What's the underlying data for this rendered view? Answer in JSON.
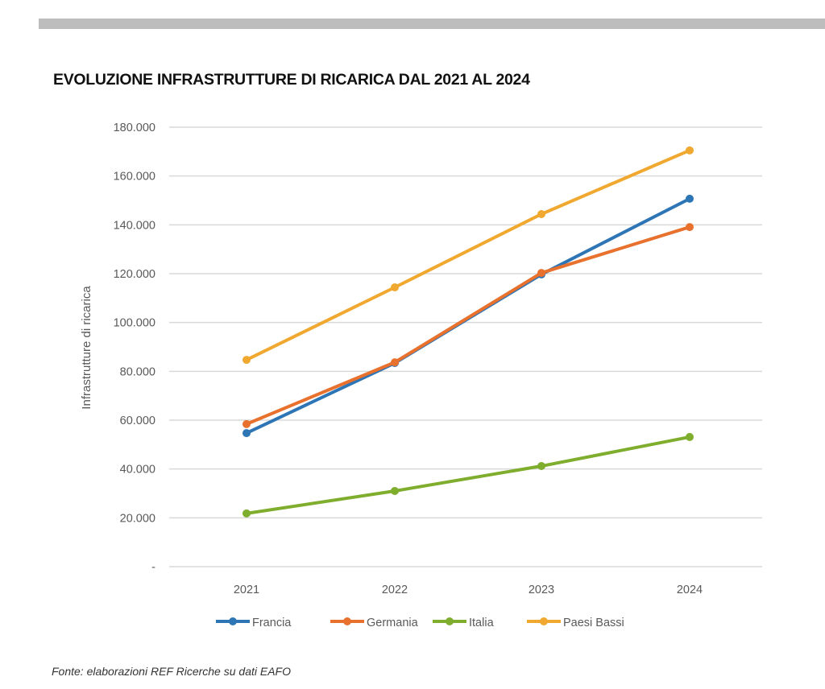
{
  "page": {
    "source_note": "Fonte: elaborazioni REF Ricerche su dati EAFO"
  },
  "chart_data": {
    "type": "line",
    "title": "EVOLUZIONE INFRASTRUTTURE DI RICARICA DAL 2021 AL 2024",
    "xlabel": "",
    "ylabel": "Infrastrutture di ricarica",
    "categories": [
      "2021",
      "2022",
      "2023",
      "2024"
    ],
    "ylim": [
      0,
      180000
    ],
    "yticks": [
      0,
      20000,
      40000,
      60000,
      80000,
      100000,
      120000,
      140000,
      160000,
      180000
    ],
    "ytick_labels": [
      "-",
      "20.000",
      "40.000",
      "60.000",
      "80.000",
      "100.000",
      "120.000",
      "140.000",
      "160.000",
      "180.000"
    ],
    "grid": true,
    "legend_position": "bottom",
    "series": [
      {
        "name": "Francia",
        "color": "#2e75b6",
        "values": [
          54700,
          83400,
          119700,
          150700
        ]
      },
      {
        "name": "Germania",
        "color": "#e8712e",
        "values": [
          58400,
          83700,
          120300,
          139100
        ]
      },
      {
        "name": "Italia",
        "color": "#7fad2e",
        "values": [
          21800,
          31000,
          41200,
          53100
        ]
      },
      {
        "name": "Paesi Bassi",
        "color": "#f0a830",
        "values": [
          84700,
          114400,
          144400,
          170500
        ]
      }
    ]
  }
}
